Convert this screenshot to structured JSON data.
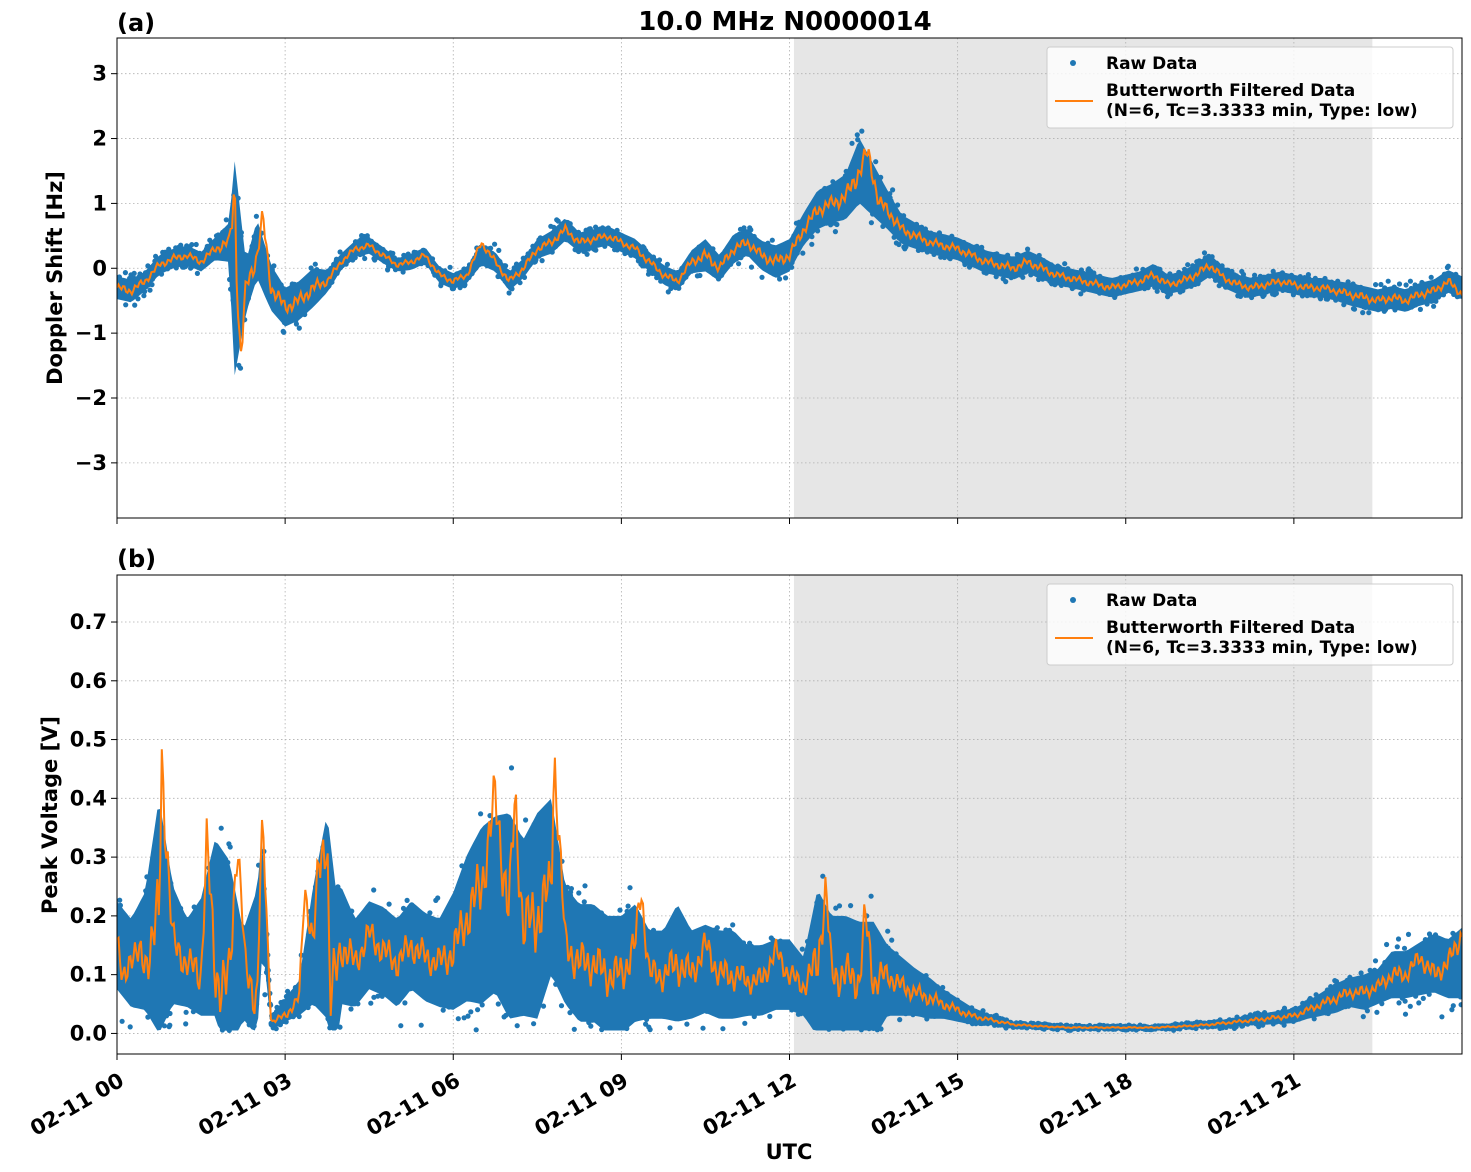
{
  "figure": {
    "title": "10.0 MHz N0000014",
    "xlabel": "UTC",
    "panel_labels": [
      "(a)",
      "(b)"
    ],
    "colors": {
      "raw": "#1f77b4",
      "filtered": "#ff7f0e",
      "shade": "#e6e6e6",
      "grid": "#b0b0b0"
    }
  },
  "chart_data": [
    {
      "type": "scatter",
      "panel": "(a)",
      "title": "10.0 MHz N0000014",
      "ylabel": "Doppler Shift [Hz]",
      "xlabel": "",
      "xlim_hours": [
        0,
        24
      ],
      "ylim": [
        -3.85,
        3.55
      ],
      "yticks": [
        -3,
        -2,
        -1,
        0,
        1,
        2,
        3
      ],
      "ytick_labels": [
        "−3",
        "−2",
        "−1",
        "0",
        "1",
        "2",
        "3"
      ],
      "grid": true,
      "legend": {
        "position": "top-right",
        "entries": [
          "Raw Data",
          "Butterworth Filtered Data",
          "(N=6, Tc=3.3333 min, Type: low)"
        ]
      },
      "shaded_region_hours": [
        12.08,
        22.4
      ],
      "series": [
        {
          "name": "Raw Data",
          "kind": "points",
          "x_hours": [
            0,
            0.25,
            0.5,
            0.75,
            1,
            1.25,
            1.5,
            1.75,
            2,
            2.1,
            2.3,
            2.5,
            2.75,
            3,
            3.25,
            3.5,
            3.75,
            4,
            4.25,
            4.5,
            4.75,
            5,
            5.25,
            5.5,
            5.75,
            6,
            6.25,
            6.5,
            6.75,
            7,
            7.25,
            7.5,
            7.75,
            8,
            8.25,
            8.5,
            8.75,
            9,
            9.25,
            9.5,
            9.75,
            10,
            10.25,
            10.5,
            10.75,
            11,
            11.25,
            11.5,
            11.75,
            12,
            12.25,
            12.5,
            12.75,
            13,
            13.25,
            13.5,
            13.75,
            14,
            14.25,
            14.5,
            14.75,
            15,
            15.25,
            15.5,
            15.75,
            16,
            16.25,
            16.5,
            16.75,
            17,
            17.25,
            17.5,
            17.75,
            18,
            18.25,
            18.5,
            18.75,
            19,
            19.25,
            19.5,
            19.75,
            20,
            20.25,
            20.5,
            20.75,
            21,
            21.25,
            21.5,
            21.75,
            22,
            22.25,
            22.5,
            22.75,
            23,
            23.25,
            23.5,
            23.75,
            24
          ],
          "y_center": [
            -0.3,
            -0.35,
            -0.2,
            0.05,
            0.15,
            0.2,
            0.1,
            0.3,
            0.4,
            0.0,
            -0.3,
            0.3,
            -0.3,
            -0.6,
            -0.5,
            -0.3,
            -0.2,
            0.1,
            0.3,
            0.35,
            0.2,
            0.05,
            0.1,
            0.2,
            -0.1,
            -0.2,
            -0.1,
            0.2,
            0.1,
            -0.2,
            0.0,
            0.3,
            0.4,
            0.6,
            0.4,
            0.45,
            0.5,
            0.4,
            0.3,
            0.1,
            -0.1,
            -0.2,
            0.1,
            0.2,
            0.0,
            0.3,
            0.4,
            0.2,
            0.1,
            0.2,
            0.6,
            0.9,
            1.0,
            1.1,
            1.5,
            1.2,
            0.9,
            0.6,
            0.5,
            0.4,
            0.35,
            0.3,
            0.2,
            0.1,
            0.05,
            0.0,
            0.1,
            0.0,
            -0.1,
            -0.15,
            -0.2,
            -0.25,
            -0.3,
            -0.25,
            -0.2,
            -0.1,
            -0.25,
            -0.2,
            -0.1,
            0.05,
            -0.15,
            -0.25,
            -0.3,
            -0.25,
            -0.2,
            -0.25,
            -0.3,
            -0.3,
            -0.35,
            -0.4,
            -0.45,
            -0.5,
            -0.45,
            -0.5,
            -0.4,
            -0.35,
            -0.2,
            -0.3
          ],
          "y_spread": [
            0.35,
            0.35,
            0.3,
            0.3,
            0.3,
            0.3,
            0.3,
            0.35,
            0.6,
            3.3,
            0.8,
            0.9,
            0.7,
            0.6,
            0.6,
            0.6,
            0.35,
            0.25,
            0.25,
            0.25,
            0.25,
            0.2,
            0.25,
            0.25,
            0.25,
            0.25,
            0.25,
            0.3,
            0.3,
            0.3,
            0.3,
            0.3,
            0.35,
            0.35,
            0.3,
            0.3,
            0.3,
            0.3,
            0.3,
            0.3,
            0.3,
            0.3,
            0.35,
            0.5,
            0.4,
            0.45,
            0.4,
            0.45,
            0.5,
            0.5,
            0.5,
            0.6,
            0.6,
            0.7,
            1.0,
            0.8,
            0.6,
            0.45,
            0.4,
            0.35,
            0.35,
            0.35,
            0.35,
            0.35,
            0.35,
            0.35,
            0.35,
            0.35,
            0.3,
            0.3,
            0.3,
            0.3,
            0.3,
            0.3,
            0.3,
            0.35,
            0.3,
            0.3,
            0.35,
            0.35,
            0.3,
            0.3,
            0.3,
            0.3,
            0.3,
            0.3,
            0.3,
            0.3,
            0.3,
            0.35,
            0.35,
            0.35,
            0.35,
            0.35,
            0.35,
            0.35,
            0.35,
            0.35
          ]
        },
        {
          "name": "Butterworth Filtered Data",
          "kind": "line",
          "x_hours": [
            0,
            0.25,
            0.5,
            0.75,
            1,
            1.25,
            1.5,
            1.75,
            2,
            2.1,
            2.2,
            2.3,
            2.5,
            2.6,
            2.75,
            3,
            3.25,
            3.5,
            3.75,
            4,
            4.25,
            4.5,
            4.75,
            5,
            5.25,
            5.5,
            5.75,
            6,
            6.25,
            6.5,
            6.75,
            7,
            7.25,
            7.5,
            7.75,
            8,
            8.25,
            8.5,
            8.75,
            9,
            9.25,
            9.5,
            9.75,
            10,
            10.25,
            10.5,
            10.75,
            11,
            11.25,
            11.5,
            11.75,
            12,
            12.25,
            12.5,
            12.75,
            13,
            13.25,
            13.4,
            13.6,
            13.75,
            14,
            14.25,
            14.5,
            14.75,
            15,
            15.25,
            15.5,
            15.75,
            16,
            16.25,
            16.5,
            16.75,
            17,
            17.25,
            17.5,
            17.75,
            18,
            18.25,
            18.5,
            18.75,
            19,
            19.25,
            19.5,
            19.75,
            20,
            20.25,
            20.5,
            20.75,
            21,
            21.25,
            21.5,
            21.75,
            22,
            22.25,
            22.5,
            22.75,
            23,
            23.25,
            23.5,
            23.75,
            24
          ],
          "y": [
            -0.3,
            -0.35,
            -0.2,
            0.05,
            0.15,
            0.2,
            0.1,
            0.3,
            0.4,
            1.2,
            -1.5,
            -0.3,
            0.2,
            0.8,
            -0.3,
            -0.6,
            -0.5,
            -0.3,
            -0.2,
            0.1,
            0.3,
            0.35,
            0.2,
            0.05,
            0.1,
            0.2,
            -0.1,
            -0.2,
            -0.1,
            0.4,
            0.1,
            -0.2,
            0.0,
            0.3,
            0.4,
            0.6,
            0.4,
            0.45,
            0.5,
            0.4,
            0.3,
            0.1,
            -0.1,
            -0.2,
            0.1,
            0.2,
            0.0,
            0.3,
            0.4,
            0.2,
            0.1,
            0.2,
            0.6,
            0.9,
            1.0,
            1.1,
            1.5,
            1.8,
            1.0,
            0.9,
            0.6,
            0.5,
            0.4,
            0.35,
            0.3,
            0.2,
            0.1,
            0.05,
            0.0,
            0.1,
            0.0,
            -0.1,
            -0.15,
            -0.2,
            -0.25,
            -0.3,
            -0.25,
            -0.2,
            -0.1,
            -0.25,
            -0.2,
            -0.1,
            0.05,
            -0.15,
            -0.25,
            -0.3,
            -0.25,
            -0.2,
            -0.25,
            -0.3,
            -0.3,
            -0.35,
            -0.4,
            -0.45,
            -0.5,
            -0.45,
            -0.5,
            -0.4,
            -0.35,
            -0.2,
            -0.4
          ]
        }
      ]
    },
    {
      "type": "scatter",
      "panel": "(b)",
      "title": "",
      "ylabel": "Peak Voltage [V]",
      "xlabel": "UTC",
      "xlim_hours": [
        0,
        24
      ],
      "ylim": [
        -0.035,
        0.78
      ],
      "yticks": [
        0.0,
        0.1,
        0.2,
        0.3,
        0.4,
        0.5,
        0.6,
        0.7
      ],
      "ytick_labels": [
        "0.0",
        "0.1",
        "0.2",
        "0.3",
        "0.4",
        "0.5",
        "0.6",
        "0.7"
      ],
      "xtick_labels": [
        "02-11 00",
        "02-11 03",
        "02-11 06",
        "02-11 09",
        "02-11 12",
        "02-11 15",
        "02-11 18",
        "02-11 21"
      ],
      "xtick_hours": [
        0,
        3,
        6,
        9,
        12,
        15,
        18,
        21
      ],
      "grid": true,
      "legend": {
        "position": "top-right",
        "entries": [
          "Raw Data",
          "Butterworth Filtered Data",
          "(N=6, Tc=3.3333 min, Type: low)"
        ]
      },
      "shaded_region_hours": [
        12.08,
        22.4
      ],
      "series": [
        {
          "name": "Raw Data",
          "kind": "points",
          "x_hours": [
            0,
            0.25,
            0.5,
            0.75,
            1,
            1.25,
            1.5,
            1.75,
            2,
            2.25,
            2.5,
            2.6,
            2.75,
            3,
            3.25,
            3.5,
            3.75,
            3.9,
            4,
            4.25,
            4.5,
            4.75,
            5,
            5.25,
            5.5,
            5.75,
            6,
            6.25,
            6.5,
            6.75,
            7,
            7.25,
            7.5,
            7.75,
            8,
            8.25,
            8.5,
            8.75,
            9,
            9.25,
            9.5,
            9.75,
            10,
            10.25,
            10.5,
            10.75,
            11,
            11.25,
            11.5,
            11.75,
            12,
            12.25,
            12.5,
            12.75,
            13,
            13.25,
            13.5,
            13.75,
            14,
            14.25,
            14.5,
            14.75,
            15,
            15.25,
            15.5,
            15.75,
            16,
            16.5,
            17,
            17.5,
            18,
            18.5,
            19,
            19.5,
            20,
            20.5,
            21,
            21.25,
            21.5,
            21.75,
            22,
            22.25,
            22.5,
            22.75,
            23,
            23.25,
            23.5,
            23.75,
            24
          ],
          "y_center": [
            0.15,
            0.12,
            0.14,
            0.2,
            0.15,
            0.12,
            0.13,
            0.18,
            0.12,
            0.1,
            0.12,
            0.25,
            0.02,
            0.04,
            0.06,
            0.15,
            0.2,
            0.1,
            0.15,
            0.12,
            0.15,
            0.14,
            0.12,
            0.15,
            0.13,
            0.12,
            0.14,
            0.18,
            0.2,
            0.22,
            0.2,
            0.18,
            0.2,
            0.25,
            0.15,
            0.12,
            0.12,
            0.1,
            0.1,
            0.12,
            0.1,
            0.1,
            0.12,
            0.1,
            0.11,
            0.1,
            0.1,
            0.09,
            0.09,
            0.1,
            0.1,
            0.08,
            0.12,
            0.1,
            0.1,
            0.09,
            0.09,
            0.09,
            0.08,
            0.07,
            0.06,
            0.05,
            0.04,
            0.03,
            0.025,
            0.02,
            0.015,
            0.012,
            0.01,
            0.01,
            0.01,
            0.01,
            0.012,
            0.015,
            0.02,
            0.025,
            0.03,
            0.04,
            0.05,
            0.06,
            0.07,
            0.07,
            0.08,
            0.1,
            0.1,
            0.11,
            0.12,
            0.11,
            0.12
          ],
          "y_spread": [
            0.15,
            0.15,
            0.2,
            0.4,
            0.2,
            0.15,
            0.2,
            0.3,
            0.35,
            0.15,
            0.25,
            0.2,
            0.02,
            0.04,
            0.06,
            0.2,
            0.35,
            0.3,
            0.2,
            0.15,
            0.15,
            0.15,
            0.15,
            0.15,
            0.15,
            0.15,
            0.2,
            0.25,
            0.3,
            0.3,
            0.35,
            0.3,
            0.35,
            0.3,
            0.2,
            0.2,
            0.2,
            0.2,
            0.2,
            0.2,
            0.15,
            0.15,
            0.2,
            0.15,
            0.15,
            0.15,
            0.15,
            0.12,
            0.12,
            0.12,
            0.12,
            0.1,
            0.25,
            0.2,
            0.2,
            0.2,
            0.2,
            0.12,
            0.1,
            0.08,
            0.07,
            0.05,
            0.04,
            0.03,
            0.02,
            0.015,
            0.01,
            0.008,
            0.006,
            0.006,
            0.006,
            0.006,
            0.008,
            0.01,
            0.015,
            0.02,
            0.025,
            0.03,
            0.04,
            0.05,
            0.05,
            0.06,
            0.06,
            0.08,
            0.08,
            0.09,
            0.1,
            0.1,
            0.12
          ]
        },
        {
          "name": "Butterworth Filtered Data",
          "kind": "line",
          "x_hours": [
            0,
            0.1,
            0.25,
            0.5,
            0.75,
            0.8,
            1,
            1.25,
            1.5,
            1.6,
            1.75,
            2,
            2.15,
            2.3,
            2.5,
            2.55,
            2.6,
            2.75,
            3,
            3.25,
            3.35,
            3.5,
            3.6,
            3.75,
            3.8,
            4,
            4.25,
            4.5,
            4.75,
            5,
            5.25,
            5.5,
            5.75,
            6,
            6.25,
            6.5,
            6.75,
            7,
            7.1,
            7.25,
            7.5,
            7.75,
            7.8,
            8,
            8.25,
            8.5,
            8.75,
            9,
            9.25,
            9.35,
            9.5,
            9.75,
            10,
            10.25,
            10.5,
            10.75,
            11,
            11.25,
            11.5,
            11.75,
            12,
            12.25,
            12.5,
            12.65,
            12.75,
            13,
            13.25,
            13.35,
            13.5,
            13.75,
            14,
            14.25,
            14.5,
            14.75,
            15,
            15.25,
            15.5,
            15.75,
            16,
            16.5,
            17,
            17.5,
            18,
            18.5,
            19,
            19.5,
            20,
            20.5,
            21,
            21.25,
            21.5,
            21.75,
            22,
            22.25,
            22.5,
            22.75,
            23,
            23.25,
            23.5,
            23.75,
            24
          ],
          "y": [
            0.16,
            0.08,
            0.14,
            0.12,
            0.2,
            0.46,
            0.15,
            0.12,
            0.1,
            0.33,
            0.1,
            0.08,
            0.34,
            0.1,
            0.06,
            0.25,
            0.35,
            0.02,
            0.03,
            0.06,
            0.25,
            0.15,
            0.28,
            0.35,
            0.05,
            0.15,
            0.12,
            0.17,
            0.14,
            0.12,
            0.15,
            0.13,
            0.12,
            0.14,
            0.2,
            0.25,
            0.4,
            0.2,
            0.4,
            0.18,
            0.2,
            0.25,
            0.48,
            0.15,
            0.12,
            0.12,
            0.1,
            0.1,
            0.15,
            0.25,
            0.1,
            0.1,
            0.12,
            0.1,
            0.15,
            0.1,
            0.1,
            0.09,
            0.09,
            0.14,
            0.1,
            0.08,
            0.12,
            0.25,
            0.1,
            0.1,
            0.09,
            0.2,
            0.09,
            0.1,
            0.08,
            0.07,
            0.06,
            0.05,
            0.04,
            0.03,
            0.025,
            0.02,
            0.015,
            0.012,
            0.01,
            0.01,
            0.01,
            0.01,
            0.012,
            0.015,
            0.02,
            0.025,
            0.03,
            0.04,
            0.05,
            0.06,
            0.07,
            0.07,
            0.08,
            0.1,
            0.1,
            0.13,
            0.1,
            0.12,
            0.17
          ]
        }
      ]
    }
  ]
}
